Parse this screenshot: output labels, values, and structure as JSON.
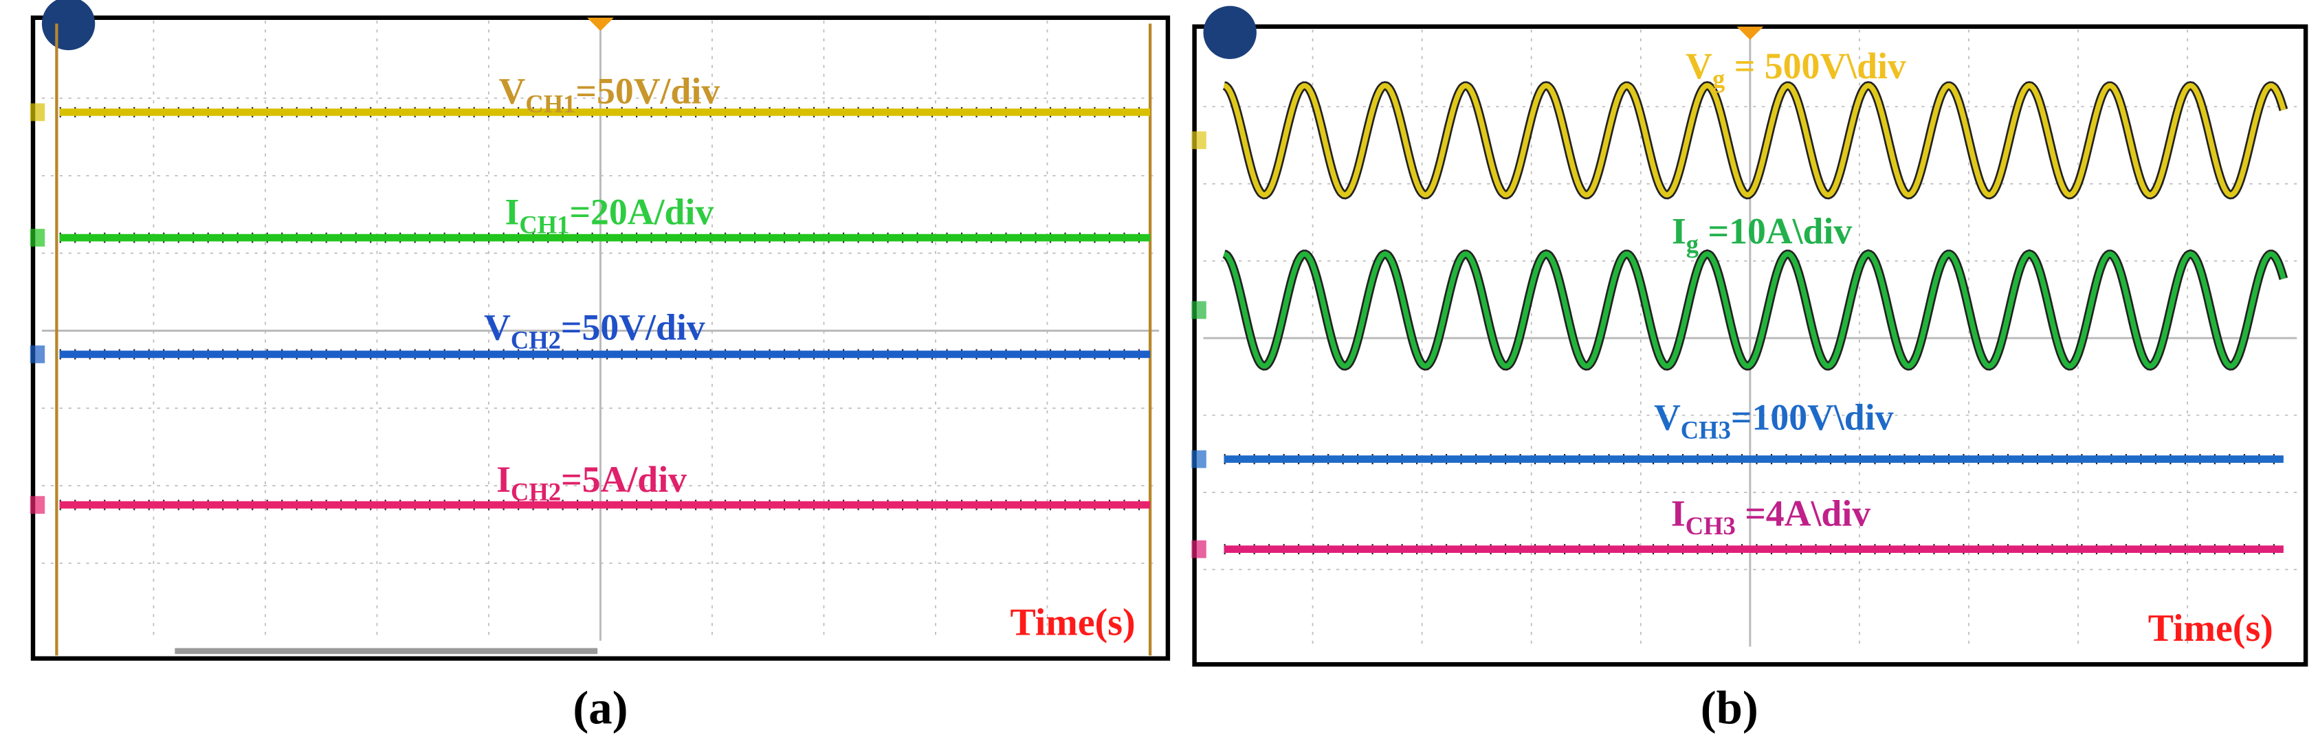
{
  "panels": [
    {
      "caption": "(a)",
      "time_label": "Time(s)",
      "traces": [
        {
          "symbol": "V",
          "subscript": "CH1",
          "text": "=50V/div"
        },
        {
          "symbol": "I",
          "subscript": "CH1",
          "text": "=20A/div"
        },
        {
          "symbol": "V",
          "subscript": "CH2",
          "text": "=50V/div"
        },
        {
          "symbol": "I",
          "subscript": "CH2",
          "text": "=5A/div"
        }
      ]
    },
    {
      "caption": "(b)",
      "time_label": "Time(s)",
      "traces": [
        {
          "symbol": "V",
          "subscript": "g",
          "text": " = 500V\\div"
        },
        {
          "symbol": "I",
          "subscript": "g",
          "text": " =10A\\div"
        },
        {
          "symbol": "V",
          "subscript": "CH3",
          "text": "=100V\\div"
        },
        {
          "symbol": "I",
          "subscript": "CH3",
          "text": " =4A\\div"
        }
      ]
    }
  ]
}
